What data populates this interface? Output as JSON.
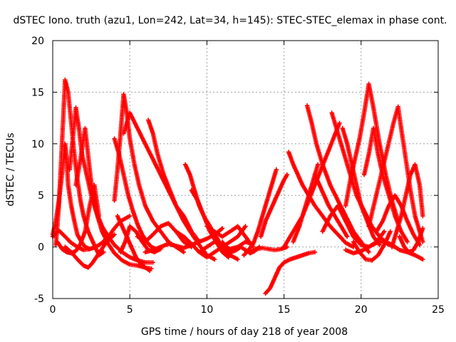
{
  "chart_data": {
    "type": "scatter",
    "title": "dSTEC Iono. truth (azu1, Lon=242, Lat=34, h=145): STEC-STEC_elemax in phase cont.",
    "xlabel": "GPS time / hours of day 218 of year 2008",
    "ylabel": "dSTEC  / TECUs",
    "xlim": [
      0,
      25
    ],
    "ylim": [
      -5,
      20
    ],
    "xticks": [
      0,
      5,
      10,
      15,
      20,
      25
    ],
    "yticks": [
      -5,
      0,
      5,
      10,
      15,
      20
    ],
    "grid": true,
    "marker": "+",
    "colors": {
      "series": "#ff0000",
      "grid": "#a0a0a0",
      "axis": "#000000"
    },
    "series": [
      {
        "x": [
          0.0,
          0.2,
          0.4,
          0.6,
          0.8,
          0.9,
          1.0,
          1.2,
          1.4,
          1.6,
          1.9,
          2.1,
          2.4
        ],
        "y": [
          1.2,
          2.5,
          4.5,
          7.0,
          10.0,
          8.6,
          6.0,
          4.0,
          2.5,
          1.2,
          0.4,
          0.0,
          -0.2
        ]
      },
      {
        "x": [
          0.2,
          0.4,
          0.6,
          0.8,
          1.0,
          1.2,
          1.4,
          1.6,
          1.8,
          2.0,
          2.3,
          2.6,
          3.0,
          3.3
        ],
        "y": [
          0.2,
          4.0,
          10.0,
          16.2,
          15.0,
          12.0,
          9.0,
          6.5,
          4.5,
          3.0,
          1.5,
          0.5,
          -0.8,
          -0.5
        ]
      },
      {
        "x": [
          0.0,
          0.4,
          0.8,
          1.2,
          1.6,
          2.0,
          2.4,
          2.8,
          3.2,
          3.6,
          4.0,
          4.4,
          5.0
        ],
        "y": [
          1.0,
          1.6,
          1.0,
          0.4,
          0.0,
          -0.3,
          -0.2,
          0.0,
          0.4,
          1.0,
          1.8,
          2.5,
          3.0
        ]
      },
      {
        "x": [
          1.1,
          1.3,
          1.5,
          1.7,
          1.9,
          2.2,
          2.5,
          2.8,
          3.2,
          3.6,
          4.0,
          4.5,
          5.0,
          5.5,
          6.0,
          6.5
        ],
        "y": [
          7.5,
          10.5,
          13.5,
          11.5,
          9.0,
          7.0,
          5.0,
          3.5,
          2.0,
          1.0,
          0.2,
          -0.5,
          -1.0,
          -1.3,
          -1.5,
          -1.5
        ]
      },
      {
        "x": [
          1.5,
          1.8,
          2.1,
          2.4,
          2.6,
          2.9,
          3.2,
          3.6,
          4.0,
          4.5,
          5.0,
          5.5,
          6.0,
          6.4
        ],
        "y": [
          6.0,
          8.5,
          11.5,
          7.5,
          5.0,
          3.0,
          1.5,
          0.3,
          -0.6,
          -1.3,
          -1.7,
          -1.8,
          -2.0,
          -2.1
        ]
      },
      {
        "x": [
          0.3,
          0.6,
          0.9,
          1.2,
          1.5,
          1.8,
          2.1,
          2.4,
          2.7,
          3.0
        ],
        "y": [
          0.5,
          -0.2,
          -0.5,
          -0.6,
          -0.4,
          0.3,
          1.5,
          4.0,
          6.0,
          3.0
        ]
      },
      {
        "x": [
          0.8,
          1.2,
          1.6,
          2.0,
          2.3,
          2.6,
          3.0,
          3.5,
          4.0
        ],
        "y": [
          0.0,
          -0.5,
          -1.2,
          -1.8,
          -2.0,
          -1.5,
          -0.6,
          0.5,
          1.2
        ]
      },
      {
        "x": [
          4.0,
          4.2,
          4.4,
          4.6,
          4.8,
          5.0,
          5.3,
          5.6,
          6.0,
          6.5,
          7.0,
          7.5,
          8.0,
          8.5
        ],
        "y": [
          4.5,
          7.5,
          11.0,
          14.8,
          13.0,
          10.5,
          8.0,
          6.0,
          4.0,
          2.5,
          1.5,
          0.5,
          0.0,
          -0.5
        ]
      },
      {
        "x": [
          4.0,
          4.3,
          4.6,
          4.9,
          5.2,
          5.5,
          5.8,
          6.1,
          6.4,
          6.7
        ],
        "y": [
          10.5,
          9.0,
          7.0,
          5.0,
          3.5,
          2.2,
          1.2,
          0.5,
          0.0,
          -0.2
        ]
      },
      {
        "x": [
          4.6,
          5.0,
          5.5,
          6.0,
          6.5,
          7.0,
          7.5,
          8.0,
          8.5,
          9.0,
          9.5
        ],
        "y": [
          11.0,
          13.0,
          11.5,
          10.0,
          8.5,
          7.0,
          5.5,
          4.0,
          3.0,
          1.5,
          0.5
        ]
      },
      {
        "x": [
          4.4,
          4.7,
          5.0,
          5.4,
          5.8,
          6.2,
          6.6,
          7.0
        ],
        "y": [
          -0.5,
          0.5,
          2.0,
          1.5,
          0.5,
          -0.3,
          -0.5,
          -0.2
        ]
      },
      {
        "x": [
          4.2,
          4.5,
          4.8,
          5.1,
          5.4,
          5.7,
          6.0,
          6.3
        ],
        "y": [
          3.0,
          2.0,
          1.0,
          0.0,
          -1.0,
          -1.6,
          -2.0,
          -2.3
        ]
      },
      {
        "x": [
          6.2,
          6.5,
          6.8,
          7.2,
          7.6,
          8.0,
          8.5,
          9.0,
          9.5,
          10.0,
          10.5
        ],
        "y": [
          12.3,
          11.0,
          9.0,
          7.0,
          5.5,
          4.0,
          2.5,
          1.3,
          0.2,
          -0.8,
          -1.2
        ]
      },
      {
        "x": [
          5.5,
          6.0,
          6.5,
          7.0,
          7.5,
          8.0,
          8.5,
          9.0
        ],
        "y": [
          1.0,
          0.5,
          1.2,
          2.0,
          2.3,
          1.5,
          0.5,
          0.0
        ]
      },
      {
        "x": [
          6.0,
          6.5,
          7.0,
          7.5,
          8.0,
          8.5,
          9.0,
          9.5,
          10.0,
          10.5,
          11.0
        ],
        "y": [
          -0.5,
          -0.3,
          0.0,
          0.3,
          0.1,
          -0.1,
          0.2,
          0.5,
          0.8,
          1.2,
          1.8
        ]
      },
      {
        "x": [
          8.6,
          8.9,
          9.2,
          9.5,
          9.8,
          10.2,
          10.6,
          11.0,
          11.5,
          12.0
        ],
        "y": [
          8.0,
          7.0,
          5.5,
          4.0,
          3.0,
          2.0,
          1.0,
          0.0,
          -0.8,
          -1.2
        ]
      },
      {
        "x": [
          9.0,
          9.4,
          9.8,
          10.2,
          10.6,
          11.0,
          11.4
        ],
        "y": [
          5.5,
          4.5,
          3.0,
          1.5,
          0.5,
          -0.5,
          -1.0
        ]
      },
      {
        "x": [
          9.5,
          10.0,
          10.5,
          11.0,
          11.5,
          12.0,
          12.5,
          12.9
        ],
        "y": [
          -0.5,
          0.0,
          0.5,
          0.2,
          -0.2,
          0.0,
          0.5,
          0.3
        ]
      },
      {
        "x": [
          10.0,
          10.5,
          11.0,
          11.5,
          12.0,
          12.5,
          13.0
        ],
        "y": [
          2.0,
          1.5,
          1.0,
          1.5,
          2.0,
          1.0,
          0.0
        ]
      },
      {
        "x": [
          8.0,
          8.5,
          9.0,
          9.5,
          10.0,
          10.5,
          11.0,
          11.5,
          12.0,
          12.5
        ],
        "y": [
          1.5,
          1.0,
          0.3,
          -0.5,
          -1.0,
          -0.5,
          0.0,
          0.5,
          1.0,
          2.0
        ]
      },
      {
        "x": [
          11.0,
          11.3,
          11.6,
          11.9,
          12.2,
          12.5,
          12.8,
          13.1,
          13.4
        ],
        "y": [
          0.5,
          -0.2,
          -0.5,
          -0.3,
          0.0,
          -0.3,
          -0.6,
          -0.4,
          0.0
        ]
      },
      {
        "x": [
          12.4,
          12.7,
          13.0,
          13.3,
          13.6,
          13.9,
          14.2,
          14.5
        ],
        "y": [
          -0.8,
          -0.3,
          0.3,
          1.5,
          3.0,
          4.5,
          6.0,
          7.5
        ]
      },
      {
        "x": [
          13.5,
          13.8,
          14.1,
          14.4,
          14.7,
          15.0,
          15.2
        ],
        "y": [
          1.0,
          2.5,
          3.5,
          4.5,
          5.5,
          6.5,
          7.0
        ]
      },
      {
        "x": [
          13.8,
          14.1,
          14.4,
          14.7,
          15.0,
          15.4,
          15.8,
          16.2,
          16.6,
          17.0
        ],
        "y": [
          -4.5,
          -4.0,
          -3.0,
          -2.0,
          -1.5,
          -1.2,
          -1.0,
          -0.8,
          -0.6,
          -0.5
        ]
      },
      {
        "x": [
          12.8,
          13.2,
          13.6,
          14.0,
          14.4,
          14.8,
          15.2
        ],
        "y": [
          -0.5,
          -0.2,
          -0.1,
          -0.2,
          -0.3,
          -0.2,
          0.0
        ]
      },
      {
        "x": [
          15.0,
          15.4,
          15.8,
          16.2,
          16.6,
          17.0,
          17.4,
          17.8,
          18.2,
          18.6
        ],
        "y": [
          0.0,
          1.0,
          2.0,
          3.0,
          4.5,
          6.0,
          7.5,
          9.0,
          10.5,
          12.0
        ]
      },
      {
        "x": [
          15.3,
          15.6,
          15.9,
          16.2,
          16.6,
          17.0,
          17.5,
          18.0,
          18.5,
          19.0,
          19.5
        ],
        "y": [
          9.2,
          8.0,
          7.0,
          6.0,
          5.0,
          4.0,
          3.0,
          2.0,
          1.2,
          0.4,
          0.0
        ]
      },
      {
        "x": [
          15.6,
          16.0,
          16.4,
          16.8,
          17.2
        ],
        "y": [
          0.5,
          2.0,
          4.0,
          6.0,
          8.0
        ]
      },
      {
        "x": [
          16.5,
          16.8,
          17.1,
          17.5,
          18.0,
          18.5,
          19.0,
          19.5,
          20.0,
          20.5
        ],
        "y": [
          13.7,
          12.0,
          10.0,
          8.0,
          6.0,
          4.5,
          3.0,
          1.5,
          0.5,
          -0.5
        ]
      },
      {
        "x": [
          17.0,
          17.3,
          17.6,
          17.9,
          18.3,
          18.7,
          19.1
        ],
        "y": [
          7.0,
          6.0,
          5.0,
          4.0,
          3.0,
          2.0,
          1.0
        ]
      },
      {
        "x": [
          18.1,
          18.5,
          18.9,
          19.3,
          19.7,
          20.2,
          20.7,
          21.2,
          21.7,
          22.2
        ],
        "y": [
          13.0,
          11.0,
          9.0,
          7.0,
          5.0,
          3.5,
          2.0,
          1.0,
          0.3,
          0.0
        ]
      },
      {
        "x": [
          18.8,
          19.1,
          19.4,
          19.7,
          20.0,
          20.4,
          20.8,
          21.2
        ],
        "y": [
          11.5,
          10.0,
          8.0,
          6.0,
          4.0,
          2.5,
          1.0,
          0.2
        ]
      },
      {
        "x": [
          17.5,
          18.0,
          18.5,
          19.0,
          19.5,
          20.0,
          20.5,
          21.0,
          21.5
        ],
        "y": [
          1.5,
          3.0,
          4.0,
          2.5,
          1.0,
          0.2,
          0.0,
          0.5,
          1.5
        ]
      },
      {
        "x": [
          19.0,
          19.3,
          19.6,
          19.9,
          20.2,
          20.5,
          20.8,
          21.2,
          21.6,
          22.0,
          22.4
        ],
        "y": [
          4.0,
          6.5,
          8.5,
          10.5,
          13.0,
          15.8,
          13.5,
          10.0,
          7.0,
          4.5,
          2.5
        ]
      },
      {
        "x": [
          20.2,
          20.5,
          20.8,
          21.1,
          21.4,
          21.8,
          22.2,
          22.6,
          23.0
        ],
        "y": [
          7.0,
          9.0,
          11.5,
          9.0,
          7.0,
          5.0,
          3.0,
          1.5,
          0.5
        ]
      },
      {
        "x": [
          20.5,
          20.9,
          21.3,
          21.7,
          22.1,
          22.4,
          22.6,
          22.9,
          23.2,
          23.5,
          23.8,
          24.0
        ],
        "y": [
          2.0,
          4.5,
          7.0,
          9.5,
          12.0,
          13.6,
          11.5,
          8.5,
          5.5,
          3.0,
          1.5,
          0.5
        ]
      },
      {
        "x": [
          19.5,
          19.9,
          20.3,
          20.7,
          21.1,
          21.5,
          21.9
        ],
        "y": [
          0.5,
          -0.5,
          -1.2,
          -1.3,
          -0.8,
          0.2,
          1.5
        ]
      },
      {
        "x": [
          21.0,
          21.4,
          21.8,
          22.2,
          22.6,
          23.0,
          23.4,
          23.8
        ],
        "y": [
          1.5,
          2.5,
          4.0,
          5.0,
          4.0,
          2.5,
          1.2,
          0.2
        ]
      },
      {
        "x": [
          22.0,
          22.3,
          22.6,
          22.9,
          23.2,
          23.5,
          23.8,
          24.0
        ],
        "y": [
          0.0,
          1.5,
          3.0,
          5.0,
          7.0,
          8.0,
          6.0,
          3.0
        ]
      },
      {
        "x": [
          19.0,
          19.5,
          20.0,
          20.5,
          21.0,
          21.5,
          22.0,
          22.5,
          23.0,
          23.5,
          24.0
        ],
        "y": [
          -0.3,
          -0.6,
          -0.4,
          0.0,
          0.4,
          0.6,
          0.2,
          -0.3,
          -0.5,
          -0.8,
          -1.2
        ]
      },
      {
        "x": [
          22.5,
          22.8,
          23.1,
          23.4,
          23.7,
          24.0
        ],
        "y": [
          1.0,
          0.0,
          -0.5,
          -0.3,
          0.5,
          1.8
        ]
      }
    ]
  }
}
